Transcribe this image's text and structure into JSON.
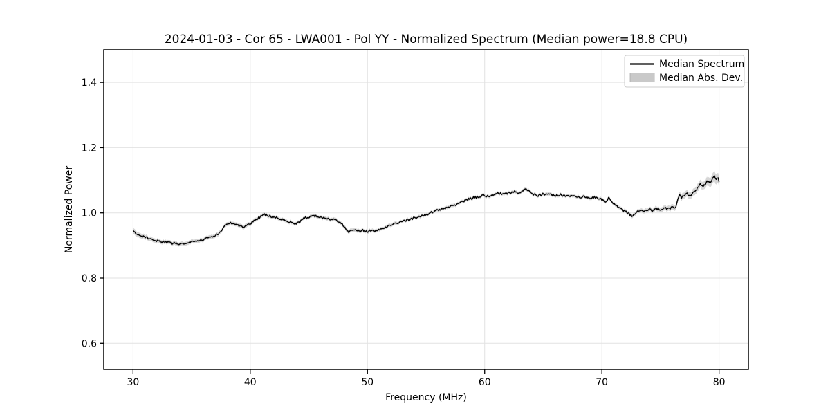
{
  "figure": {
    "background_color": "#ffffff",
    "line_color": "#000000",
    "band_color": "#c0c0c0",
    "grid_color": "#e2e2e2",
    "spine_color": "#000000",
    "legend_border_color": "#cccccc"
  },
  "chart_data": {
    "type": "line",
    "title": "2024-01-03 - Cor 65 - LWA001 - Pol YY - Normalized Spectrum (Median power=18.8 CPU)",
    "xlabel": "Frequency (MHz)",
    "ylabel": "Normalized Power",
    "xlim": [
      27.5,
      82.5
    ],
    "ylim": [
      0.52,
      1.5
    ],
    "xticks": [
      30,
      40,
      50,
      60,
      70,
      80
    ],
    "yticks": [
      0.6,
      0.8,
      1.0,
      1.2,
      1.4
    ],
    "grid": true,
    "legend": {
      "position": "upper right",
      "entries": [
        {
          "label": "Median Spectrum",
          "type": "line",
          "color": "#000000"
        },
        {
          "label": "Median Abs. Dev.",
          "type": "patch",
          "color": "#c9c9c9"
        }
      ]
    },
    "series": [
      {
        "name": "Median Spectrum",
        "x": [
          30.0,
          30.3,
          30.8,
          31.5,
          32.3,
          33.0,
          33.5,
          34.0,
          34.5,
          35.0,
          35.5,
          36.0,
          36.5,
          37.0,
          37.5,
          37.8,
          38.0,
          38.3,
          38.6,
          39.0,
          39.3,
          39.7,
          40.0,
          40.3,
          40.7,
          41.0,
          41.3,
          41.7,
          42.0,
          42.5,
          43.0,
          43.5,
          43.8,
          44.0,
          44.3,
          44.6,
          45.0,
          45.5,
          46.0,
          46.5,
          47.0,
          47.5,
          47.8,
          48.1,
          48.4,
          48.7,
          49.0,
          49.3,
          49.6,
          50.0,
          50.3,
          50.6,
          51.0,
          51.5,
          52.0,
          53.0,
          54.0,
          55.0,
          56.0,
          57.0,
          57.5,
          58.0,
          58.5,
          59.0,
          59.5,
          60.0,
          60.5,
          61.0,
          61.5,
          62.0,
          62.5,
          63.0,
          63.3,
          63.6,
          64.0,
          64.5,
          65.0,
          65.5,
          66.0,
          66.5,
          67.0,
          67.5,
          68.0,
          68.5,
          69.0,
          69.5,
          70.0,
          70.3,
          70.6,
          71.0,
          71.5,
          72.0,
          72.3,
          72.6,
          73.0,
          73.3,
          73.6,
          74.0,
          74.3,
          74.6,
          75.0,
          75.3,
          75.6,
          76.0,
          76.2,
          76.4,
          76.6,
          76.8,
          77.0,
          77.2,
          77.5,
          77.8,
          78.0,
          78.2,
          78.4,
          78.6,
          78.8,
          79.0,
          79.2,
          79.4,
          79.6,
          79.7,
          79.9,
          80.0
        ],
        "y": [
          0.948,
          0.936,
          0.928,
          0.92,
          0.912,
          0.908,
          0.906,
          0.905,
          0.907,
          0.91,
          0.914,
          0.919,
          0.924,
          0.93,
          0.94,
          0.96,
          0.966,
          0.971,
          0.967,
          0.961,
          0.956,
          0.961,
          0.967,
          0.974,
          0.984,
          0.992,
          0.995,
          0.99,
          0.987,
          0.982,
          0.978,
          0.971,
          0.965,
          0.968,
          0.975,
          0.984,
          0.988,
          0.99,
          0.985,
          0.982,
          0.98,
          0.975,
          0.968,
          0.952,
          0.941,
          0.947,
          0.95,
          0.944,
          0.947,
          0.943,
          0.946,
          0.944,
          0.95,
          0.956,
          0.962,
          0.974,
          0.984,
          0.995,
          1.008,
          1.02,
          1.025,
          1.034,
          1.04,
          1.046,
          1.05,
          1.053,
          1.05,
          1.061,
          1.058,
          1.06,
          1.066,
          1.061,
          1.07,
          1.073,
          1.058,
          1.053,
          1.058,
          1.056,
          1.053,
          1.056,
          1.05,
          1.053,
          1.048,
          1.05,
          1.046,
          1.048,
          1.04,
          1.034,
          1.046,
          1.028,
          1.014,
          1.004,
          0.997,
          0.99,
          1.004,
          1.009,
          1.004,
          1.011,
          1.007,
          1.014,
          1.009,
          1.015,
          1.011,
          1.017,
          1.011,
          1.028,
          1.056,
          1.048,
          1.054,
          1.06,
          1.053,
          1.063,
          1.07,
          1.078,
          1.088,
          1.08,
          1.086,
          1.098,
          1.09,
          1.103,
          1.113,
          1.1,
          1.11,
          1.097
        ]
      },
      {
        "name": "Median Abs. Dev.",
        "band_halfwidth_points": [
          [
            30,
            0.009
          ],
          [
            31,
            0.007
          ],
          [
            33,
            0.006
          ],
          [
            36,
            0.006
          ],
          [
            40,
            0.006
          ],
          [
            45,
            0.005
          ],
          [
            48.5,
            0.006
          ],
          [
            52,
            0.005
          ],
          [
            58,
            0.005
          ],
          [
            63,
            0.005
          ],
          [
            68,
            0.005
          ],
          [
            71,
            0.005
          ],
          [
            73,
            0.006
          ],
          [
            75,
            0.007
          ],
          [
            76.5,
            0.009
          ],
          [
            78,
            0.011
          ],
          [
            79,
            0.013
          ],
          [
            79.6,
            0.016
          ],
          [
            80,
            0.015
          ]
        ]
      }
    ]
  }
}
